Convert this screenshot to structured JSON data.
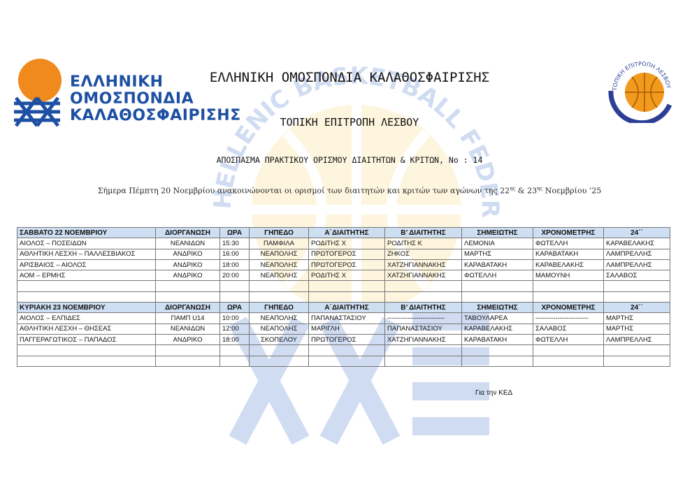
{
  "header": {
    "logo_left_text": [
      "ΕΛΛΗΝΙΚΗ",
      "ΟΜΟΣΠΟΝΔΙΑ",
      "ΚΑΛΑΘΟΣΦΑΙΡΙΣΗΣ"
    ],
    "logo_left_arc": "HELLENIC BASKETBALL FEDERATION",
    "logo_right_arc": "ΤΟΠΙΚΗ ΕΠΙΤΡΟΠΗ ΛΕΣΒΟΥ",
    "title": "ΕΛΛΗΝΙΚΗ ΟΜΟΣΠΟΝΔΙΑ ΚΑΛΑΘΟΣΦΑΙΡΙΣΗΣ",
    "subtitle": "ΤΟΠΙΚΗ ΕΠΙΤΡΟΠΗ ΛΕΣΒΟΥ",
    "doc_title": "ΑΠΟΣΠΑΣΜΑ ΠΡΑΚΤΙΚΟΥ ΟΡΙΣΜΟΥ ΔΙΑΙΤΗΤΩΝ & ΚΡΙΤΩΝ, No : 14",
    "intro_a": "Σήμερα Πέμπτη 20 Νοεμβρίου ανακοινώνονται οι ορισμοί των διαιτητών και κριτών των αγώνων της 22",
    "sup1": "ης",
    "intro_b": " & 23",
    "sup2": "ης",
    "intro_c": "  Νοεμβρίου ’25",
    "watermark": "HELLENIC BASKETBALL FEDERATION",
    "colors": {
      "blue": "#1d4fa3",
      "orange": "#f08a1c",
      "header_fill": "#c6d9f1",
      "watermark_yellow": "#f7d36b"
    }
  },
  "days": [
    {
      "headers": [
        "ΣΑΒΒΑΤΟ 22 ΝΟΕΜΒΡΙΟΥ",
        "ΔΙΟΡΓΑΝΩΣΗ",
        "ΩΡΑ",
        "ΓΗΠΕΔΟ",
        "Α΄ΔΙΑΙΤΗΤΗΣ",
        "Β’ ΔΙΑΙΤΗΤΗΣ",
        "ΣΗΜΕΙΩΤΗΣ",
        "ΧΡΟΝΟΜΕΤΡΗΣ",
        "24΄΄"
      ],
      "rows": [
        [
          "ΑΙΟΛΟΣ – ΠΟΣΕΙΔΩΝ",
          "ΝΕΑΝΙΔΩΝ",
          "15:30",
          "ΠΑΜΦΙΛΑ",
          "ΡΟΔΙΤΗΣ Χ",
          "ΡΟΔΙΤΗΣ Κ",
          "ΛΕΜΟΝΙΑ",
          "ΦΩΤΕΛΛΗ",
          "ΚΑΡΑΒΕΛΑΚΗΣ"
        ],
        [
          "ΑΘΛΗΤΙΚΗ ΛΕΣΧΗ – ΠΑΛΛΕΣΒΙΑΚΟΣ",
          "ΑΝΔΡΙΚΟ",
          "16:00",
          "ΝΕΑΠΟΛΗΣ",
          "ΠΡΩΤΟΓΕΡΟΣ",
          "ΖΗΚΟΣ",
          "ΜΑΡΤΗΣ",
          "ΚΑΡΑΒΑΤΑΚΗ",
          "ΛΑΜΠΡΕΛΛΗΣ"
        ],
        [
          "ΑΡΙΣΒΑΙΟΣ – ΑΙΟΛΟΣ",
          "ΑΝΔΡΙΚΟ",
          "18:00",
          "ΝΕΑΠΟΛΗΣ",
          "ΠΡΩΤΟΓΕΡΟΣ",
          "ΧΑΤΖΗΓΙΑΝΝΑΚΗΣ",
          "ΚΑΡΑΒΑΤΑΚΗ",
          "ΚΑΡΑΒΕΛΑΚΗΣ",
          "ΛΑΜΠΡΕΛΛΗΣ"
        ],
        [
          "ΑΟΜ – ΕΡΜΗΣ",
          "ΑΝΔΡΙΚΟ",
          "20:00",
          "ΝΕΑΠΟΛΗΣ",
          "ΡΟΔΙΤΗΣ Χ",
          "ΧΑΤΖΗΓΙΑΝΝΑΚΗΣ",
          "ΦΩΤΕΛΛΗ",
          "ΜΑΜΟΥΝΗ",
          "ΣΑΛΑΒΟΣ"
        ],
        [
          "",
          "",
          "",
          "",
          "",
          "",
          "",
          "",
          ""
        ],
        [
          "",
          "",
          "",
          "",
          "",
          "",
          "",
          "",
          ""
        ]
      ]
    },
    {
      "headers": [
        "ΚΥΡΙΑΚΗ 23 ΝΟΕΜΒΡΙΟΥ",
        "ΔΙΟΡΓΑΝΩΣΗ",
        "ΩΡΑ",
        "ΓΗΠΕΔΟ",
        "Α΄ΔΙΑΙΤΗΤΗΣ",
        "Β’ ΔΙΑΙΤΗΤΗΣ",
        "ΣΗΜΕΙΩΤΗΣ",
        "ΧΡΟΝΟΜΕΤΡΗΣ",
        "24΄΄"
      ],
      "rows": [
        [
          "ΑΙΟΛΟΣ – ΕΛΠΙΔΕΣ",
          "ΠΑΜΠ U14",
          "10:00",
          "ΝΕΑΠΟΛΗΣ",
          "ΠΑΠΑΝΑΣΤΑΣΙΟΥ",
          "--------------------------",
          "ΤΑΒΟΥΛΑΡΕΑ",
          "------------------------",
          "ΜΑΡΤΗΣ"
        ],
        [
          "ΑΘΛΗΤΙΚΗ ΛΕΣΧΗ – ΘΗΣΕΑΣ",
          "ΝΕΑΝΙΔΩΝ",
          "12:00",
          "ΝΕΑΠΟΛΗΣ",
          "ΜΑΡΙΓΛΗ",
          "ΠΑΠΑΝΑΣΤΑΣΙΟΥ",
          "ΚΑΡΑΒΕΛΑΚΗΣ",
          "ΣΑΛΑΒΟΣ",
          "ΜΑΡΤΗΣ"
        ],
        [
          "ΠΑΓΓΕΡΑΓΩΤΙΚΟΣ – ΠΑΠΑΔΟΣ",
          "ΑΝΔΡΙΚΟ",
          "18:00",
          "ΣΚΟΠΕΛΟΥ",
          "ΠΡΩΤΟΓΕΡΟΣ",
          "ΧΑΤΖΗΓΙΑΝΝΑΚΗΣ",
          "ΚΑΡΑΒΑΤΑΚΗ",
          "ΦΩΤΕΛΛΗ",
          "ΛΑΜΠΡΕΛΛΗΣ"
        ],
        [
          "",
          "",
          "",
          "",
          "",
          "",
          "",
          "",
          ""
        ],
        [
          "",
          "",
          "",
          "",
          "",
          "",
          "",
          "",
          ""
        ]
      ]
    }
  ],
  "footer": {
    "signature": "Για την ΚΕΔ"
  }
}
